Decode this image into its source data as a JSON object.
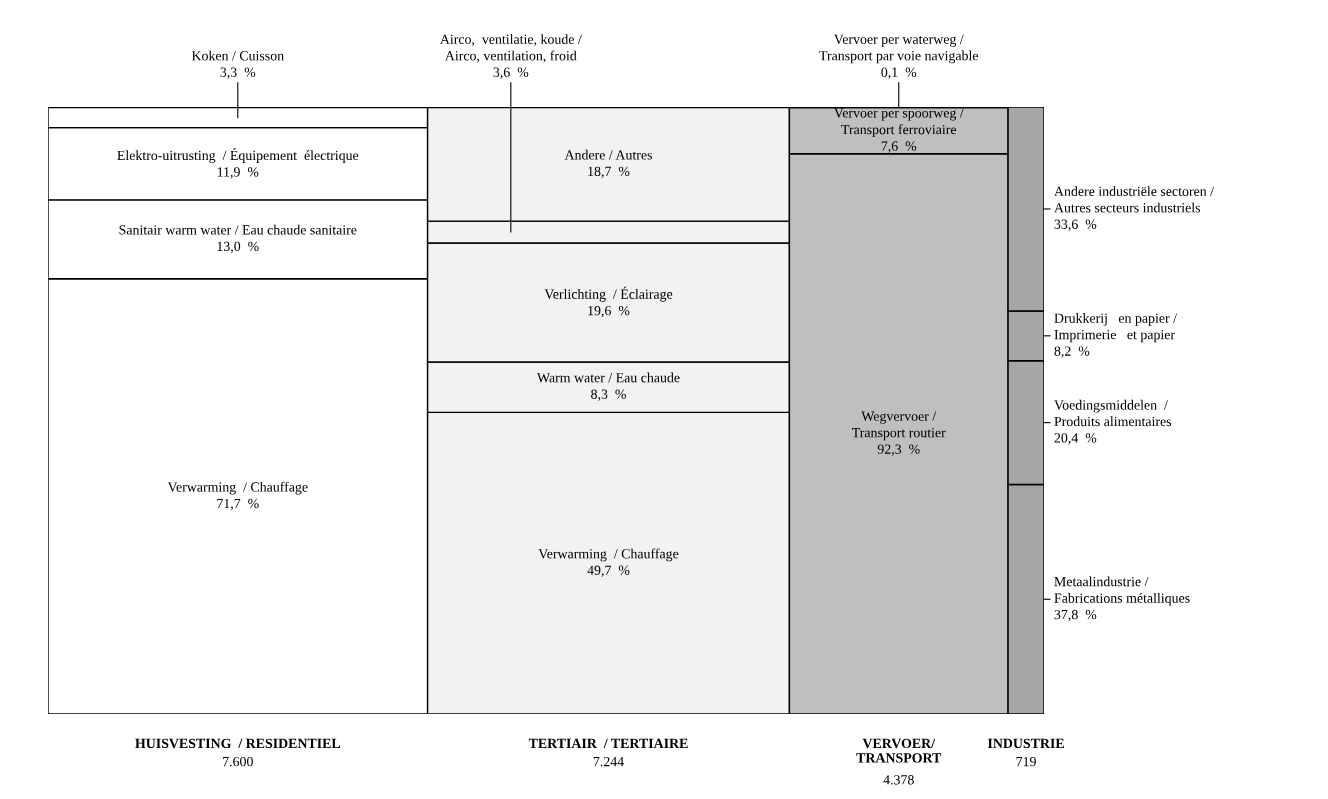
{
  "chart_data": {
    "type": "other",
    "colors": [
      "#ffffff",
      "#f2f2f2",
      "#bfbfbf",
      "#a6a6a6"
    ],
    "categories": [
      "HUISVESTING  / RESIDENTIEL",
      "TERTIAIR  / TERTIAIRE",
      "VERVOER/\nTRANSPORT",
      "INDUSTRIE"
    ],
    "values": [
      7600,
      7244,
      4378,
      719
    ],
    "value_labels": [
      "7.600",
      "7.244",
      "4.378",
      "719"
    ],
    "series": [
      {
        "name": "Verwarming  / Chauffage",
        "values": [
          71.7,
          null,
          null,
          null
        ],
        "value_labels": [
          "71,7  %",
          null,
          null,
          null
        ]
      },
      {
        "name": "Sanitair warm water / Eau chaude sanitaire",
        "values": [
          13.0,
          null,
          null,
          null
        ],
        "value_labels": [
          "13,0  %",
          null,
          null,
          null
        ]
      },
      {
        "name": "Elektro-uitrusting  / Équipement  électrique",
        "values": [
          11.9,
          null,
          null,
          null
        ],
        "value_labels": [
          "11,9  %",
          null,
          null,
          null
        ]
      },
      {
        "name": "Koken / Cuisson",
        "values": [
          3.3,
          null,
          null,
          null
        ],
        "value_labels": [
          "3,3  %",
          null,
          null,
          null
        ]
      },
      {
        "name": "Verwarming  / Chauffage",
        "values": [
          null,
          49.7,
          null,
          null
        ],
        "value_labels": [
          null,
          "49,7  %",
          null,
          null
        ]
      },
      {
        "name": "Warm water / Eau chaude",
        "values": [
          null,
          8.3,
          null,
          null
        ],
        "value_labels": [
          null,
          "8,3  %",
          null,
          null
        ]
      },
      {
        "name": "Verlichting  / Éclairage",
        "values": [
          null,
          19.6,
          null,
          null
        ],
        "value_labels": [
          null,
          "19,6  %",
          null,
          null
        ]
      },
      {
        "name": "Airco,  ventilatie, koude /\nAirco, ventilation, froid",
        "values": [
          null,
          3.6,
          null,
          null
        ],
        "value_labels": [
          null,
          "3,6  %",
          null,
          null
        ]
      },
      {
        "name": "Andere / Autres",
        "values": [
          null,
          18.7,
          null,
          null
        ],
        "value_labels": [
          null,
          "18,7  %",
          null,
          null
        ]
      },
      {
        "name": "Wegvervoer /\nTransport routier",
        "values": [
          null,
          null,
          92.3,
          null
        ],
        "value_labels": [
          null,
          null,
          "92,3  %",
          null
        ]
      },
      {
        "name": "Vervoer per spoorweg /\nTransport ferroviaire",
        "values": [
          null,
          null,
          7.6,
          null
        ],
        "value_labels": [
          null,
          null,
          "7,6  %",
          null
        ]
      },
      {
        "name": "Vervoer per waterweg /\nTransport par voie navigable",
        "values": [
          null,
          null,
          0.1,
          null
        ],
        "value_labels": [
          null,
          null,
          "0,1  %",
          null
        ]
      },
      {
        "name": "Metaalindustrie /\nFabrications métalliques",
        "values": [
          null,
          null,
          null,
          37.8
        ],
        "value_labels": [
          null,
          null,
          null,
          "37,8  %"
        ]
      },
      {
        "name": "Voedingsmiddelen  /\nProduits alimentaires",
        "values": [
          null,
          null,
          null,
          20.4
        ],
        "value_labels": [
          null,
          null,
          null,
          "20,4  %"
        ]
      },
      {
        "name": "Drukkerij   en papier /\nImprimerie   et papier",
        "values": [
          null,
          null,
          null,
          8.2
        ],
        "value_labels": [
          null,
          null,
          null,
          "8,2  %"
        ]
      },
      {
        "name": "Andere industriële sectoren /\nAutres secteurs industriels",
        "values": [
          null,
          null,
          null,
          33.6
        ],
        "value_labels": [
          null,
          null,
          null,
          "33,6  %"
        ]
      }
    ]
  }
}
